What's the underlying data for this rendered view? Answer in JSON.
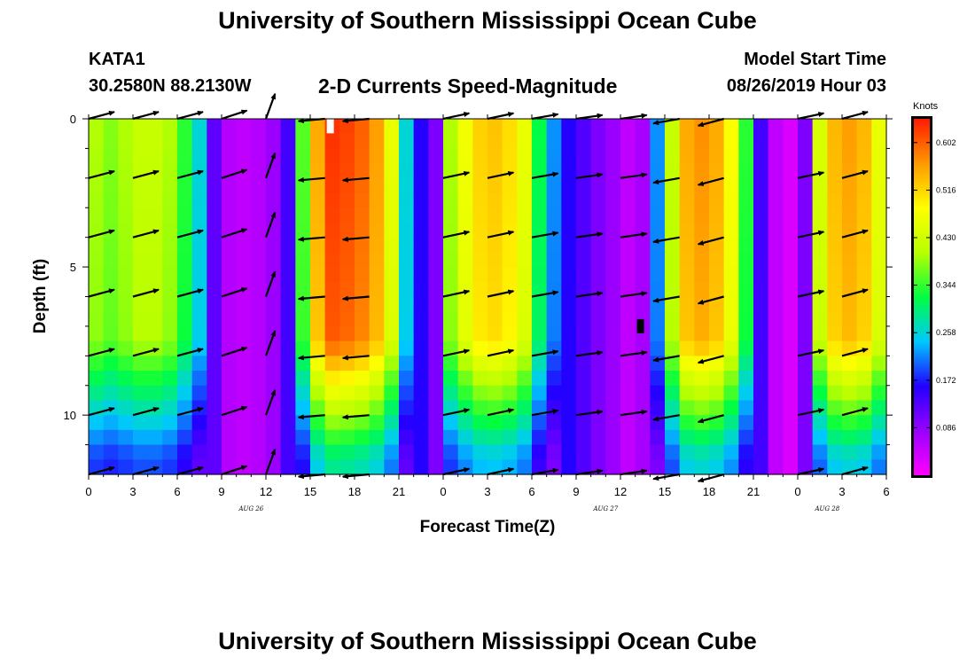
{
  "header": {
    "title": "University of Southern Mississippi Ocean Cube",
    "station": "KATA1",
    "coordinates": "30.2580N 88.2130W",
    "plot_title": "2-D Currents Speed-Magnitude",
    "start_label": "Model Start Time",
    "start_value": "08/26/2019 Hour 03"
  },
  "footer": {
    "title": "University of Southern Mississippi Ocean Cube"
  },
  "colorbar": {
    "units": "Knots",
    "min": 0,
    "max": 0.645,
    "ticks": [
      0.602,
      0.516,
      0.43,
      0.344,
      0.258,
      0.172,
      0.086
    ],
    "tick_labels": [
      "0.602",
      "0.516",
      "0.430",
      "0.344",
      "0.258",
      "0.172",
      "0.086"
    ],
    "colors": [
      "#ff00ff",
      "#9a00ff",
      "#2200ff",
      "#00c8ff",
      "#00ff40",
      "#b8ff00",
      "#ffff00",
      "#ff9900",
      "#ff1a00"
    ]
  },
  "chart_data": {
    "type": "heatmap",
    "title": "2-D Currents Speed-Magnitude",
    "xlabel": "Forecast Time(Z)",
    "ylabel": "Depth (ft)",
    "x_range_hours": [
      0,
      54
    ],
    "y_range_ft": [
      0,
      12
    ],
    "x_tick_hours": [
      0,
      3,
      6,
      9,
      12,
      15,
      18,
      21,
      24,
      27,
      30,
      33,
      36,
      39,
      42,
      45,
      48,
      51,
      54
    ],
    "x_tick_labels": [
      "0",
      "3",
      "6",
      "9",
      "12",
      "15",
      "18",
      "21",
      "0",
      "3",
      "6",
      "9",
      "12",
      "15",
      "18",
      "21",
      "0",
      "3",
      "6"
    ],
    "y_ticks": [
      0,
      5,
      10
    ],
    "y_tick_labels": [
      "0",
      "5",
      "10"
    ],
    "date_markers": [
      {
        "hour": 11,
        "label": "AUG 26"
      },
      {
        "hour": 35,
        "label": "AUG 27"
      },
      {
        "hour": 50,
        "label": "AUG 28"
      }
    ],
    "time_hours": [
      0,
      1,
      2,
      3,
      4,
      5,
      6,
      7,
      8,
      9,
      10,
      11,
      12,
      13,
      14,
      15,
      16,
      17,
      18,
      19,
      20,
      21,
      22,
      23,
      24,
      25,
      26,
      27,
      28,
      29,
      30,
      31,
      32,
      33,
      34,
      35,
      36,
      37,
      38,
      39,
      40,
      41,
      42,
      43,
      44,
      45,
      46,
      47,
      48,
      49,
      50,
      51,
      52,
      53
    ],
    "surface_speed_knots": [
      0.4,
      0.38,
      0.4,
      0.42,
      0.42,
      0.4,
      0.34,
      0.26,
      0.12,
      0.06,
      0.05,
      0.06,
      0.08,
      0.14,
      0.36,
      0.55,
      0.63,
      0.62,
      0.6,
      0.56,
      0.46,
      0.26,
      0.16,
      0.1,
      0.4,
      0.47,
      0.52,
      0.53,
      0.51,
      0.46,
      0.32,
      0.22,
      0.16,
      0.13,
      0.1,
      0.08,
      0.05,
      0.07,
      0.22,
      0.42,
      0.55,
      0.57,
      0.55,
      0.48,
      0.34,
      0.14,
      0.05,
      0.03,
      0.1,
      0.44,
      0.54,
      0.56,
      0.54,
      0.46
    ],
    "depth_profile_multipliers": [
      {
        "depth_ft": 0.5,
        "factor": 1.0
      },
      {
        "depth_ft": 7.5,
        "factor": 0.96
      },
      {
        "depth_ft": 8.5,
        "factor": 0.82
      },
      {
        "depth_ft": 9.5,
        "factor": 0.7
      },
      {
        "depth_ft": 10.5,
        "factor": 0.58
      },
      {
        "depth_ft": 11.5,
        "factor": 0.46
      }
    ],
    "vector_times_hours": [
      0,
      3,
      6,
      9,
      12,
      16,
      19,
      24,
      27,
      30,
      33,
      36,
      40,
      43,
      48,
      51
    ],
    "vector_depths_ft": [
      0,
      2,
      4,
      6,
      8,
      10,
      12
    ],
    "vector_directions_deg": [
      15,
      15,
      15,
      18,
      70,
      185,
      185,
      12,
      12,
      10,
      8,
      8,
      190,
      195,
      12,
      15
    ],
    "missing_cells": [
      {
        "hour": 16,
        "depth_ft": 0.25,
        "color": "#ffffff"
      },
      {
        "hour": 37,
        "depth_ft": 7.0,
        "color": "#000000"
      }
    ]
  }
}
